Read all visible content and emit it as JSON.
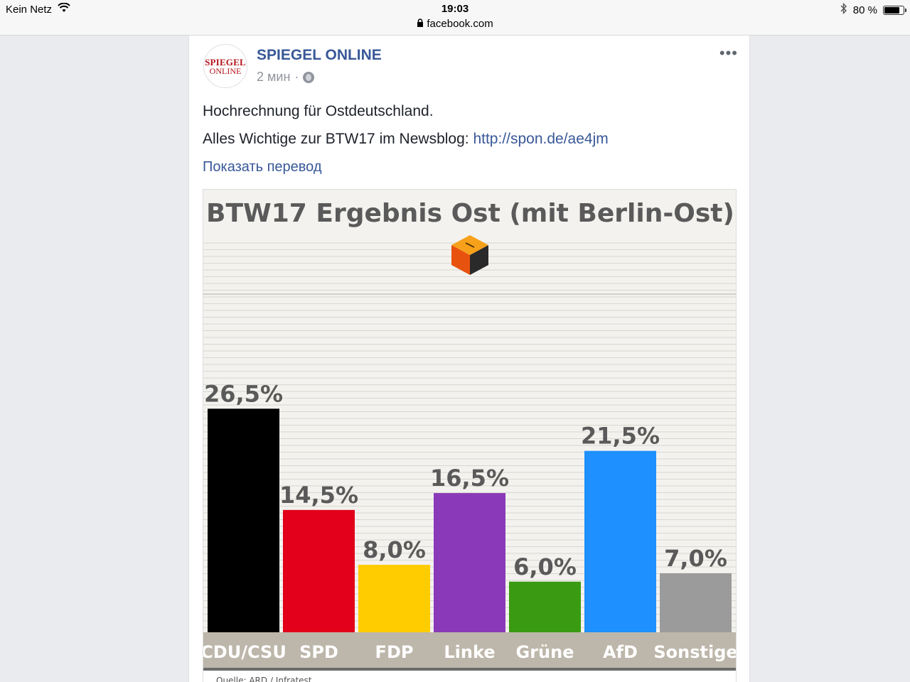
{
  "status_bar": {
    "carrier": "Kein Netz",
    "time": "19:03",
    "url": "facebook.com",
    "battery": "80 %",
    "battery_level": 0.8,
    "icons": [
      "wifi-icon",
      "lock-icon",
      "bluetooth-icon",
      "battery-icon"
    ]
  },
  "post": {
    "page_name": "SPIEGEL ONLINE",
    "avatar_line1": "SPIEGEL",
    "avatar_line2": "ONLINE",
    "time": "2 мин",
    "separator": "·",
    "more": "•••",
    "text_line1": "Hochrechnung für Ostdeutschland.",
    "text_line2_prefix": "Alles Wichtige zur BTW17 im Newsblog: ",
    "text_line2_link": "http://spon.de/ae4jm",
    "translate": "Показать перевод"
  },
  "chart_data": {
    "type": "bar",
    "title": "BTW17 Ergebnis Ost (mit Berlin-Ost)",
    "categories": [
      "CDU/CSU",
      "SPD",
      "FDP",
      "Linke",
      "Grüne",
      "AfD",
      "Sonstige"
    ],
    "values": [
      26.5,
      14.5,
      8.0,
      16.5,
      6.0,
      21.5,
      7.0
    ],
    "value_labels": [
      "26,5%",
      "14,5%",
      "8,0%",
      "16,5%",
      "6,0%",
      "21,5%",
      "7,0%"
    ],
    "colors": [
      "#000000",
      "#e2001a",
      "#ffcc00",
      "#8a3ab9",
      "#3a9a12",
      "#1e90ff",
      "#9b9b9b"
    ],
    "source": "Quelle: ARD / Infratest",
    "ylim": [
      0,
      32
    ],
    "grid": true,
    "icon": "ballot-box-icon"
  }
}
